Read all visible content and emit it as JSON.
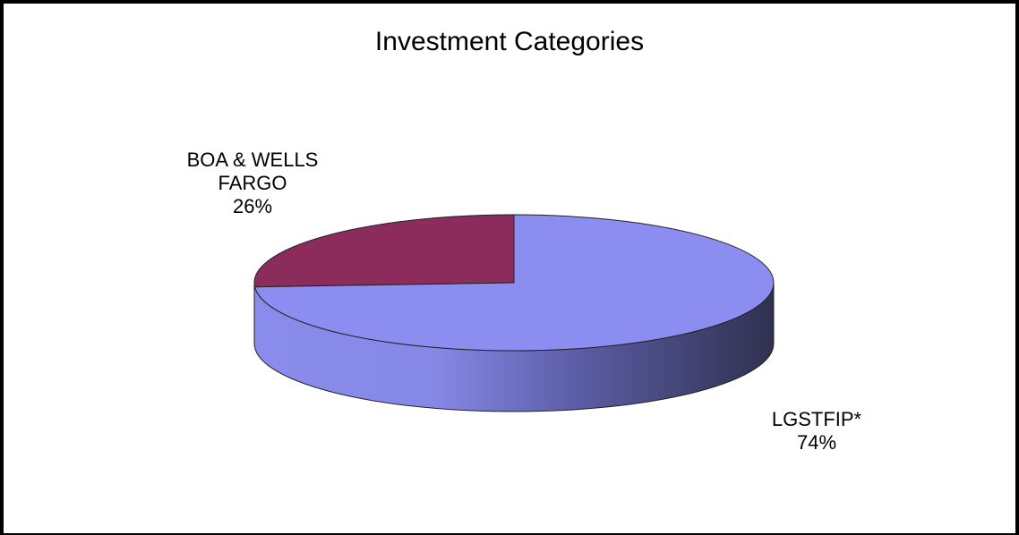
{
  "chart_data": {
    "type": "pie",
    "title": "Investment Categories",
    "slices": [
      {
        "name": "BOA & WELLS FARGO",
        "name_lines": [
          "BOA & WELLS",
          "FARGO"
        ],
        "value": 26,
        "value_label": "26%",
        "color": "#8b2c5c"
      },
      {
        "name": "LGSTFIP*",
        "name_lines": [
          "LGSTFIP*"
        ],
        "value": 74,
        "value_label": "74%",
        "color": "#8b8df0"
      }
    ],
    "three_d": true
  }
}
